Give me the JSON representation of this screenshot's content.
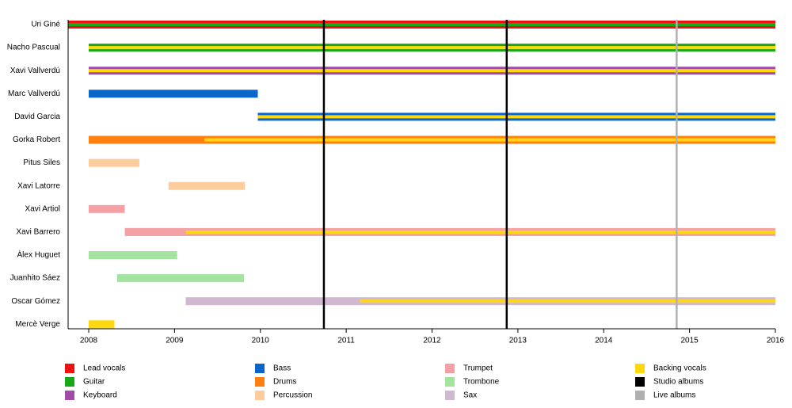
{
  "chart_data": {
    "type": "timeline",
    "categories": [
      "Uri Giné",
      "Nacho Pascual",
      "Xavi Vallverdú",
      "Marc Vallverdú",
      "David Garcia",
      "Gorka Robert",
      "Pitus Siles",
      "Xavi Latorre",
      "Xavi Artiol",
      "Xavi Barrero",
      "Àlex Huguet",
      "Juanhito Sáez",
      "Oscar Gómez",
      "Mercè Verge"
    ],
    "xlim": [
      2007.76,
      2016
    ],
    "xticks": [
      2008,
      2009,
      2010,
      2011,
      2012,
      2013,
      2014,
      2015,
      2016
    ],
    "series": [
      {
        "name": "Lead vocals",
        "color": "#ee1111",
        "start": [
          2007.76,
          null,
          null,
          null,
          null,
          null,
          null,
          null,
          null,
          null,
          null,
          null,
          null,
          null
        ],
        "end": [
          2016,
          null,
          null,
          null,
          null,
          null,
          null,
          null,
          null,
          null,
          null,
          null,
          null,
          null
        ]
      },
      {
        "name": "Guitar",
        "color": "#19a819",
        "start": [
          2007.76,
          2008,
          null,
          null,
          null,
          null,
          null,
          null,
          null,
          null,
          null,
          null,
          null,
          null
        ],
        "end": [
          2016,
          2016,
          null,
          null,
          null,
          null,
          null,
          null,
          null,
          null,
          null,
          null,
          null,
          null
        ]
      },
      {
        "name": "Keyboard",
        "color": "#a04ca8",
        "start": [
          null,
          null,
          2008,
          null,
          null,
          null,
          null,
          null,
          null,
          null,
          null,
          null,
          null,
          null
        ],
        "end": [
          null,
          null,
          2016,
          null,
          null,
          null,
          null,
          null,
          null,
          null,
          null,
          null,
          null,
          null
        ]
      },
      {
        "name": "Bass",
        "color": "#0a66c8",
        "start": [
          null,
          null,
          null,
          2008,
          2009.97,
          null,
          null,
          null,
          null,
          null,
          null,
          null,
          null,
          null
        ],
        "end": [
          null,
          null,
          null,
          2009.97,
          2016,
          null,
          null,
          null,
          null,
          null,
          null,
          null,
          null,
          null
        ]
      },
      {
        "name": "Drums",
        "color": "#ff8010",
        "start": [
          null,
          null,
          null,
          null,
          null,
          2008,
          null,
          null,
          null,
          null,
          null,
          null,
          null,
          null
        ],
        "end": [
          null,
          null,
          null,
          null,
          null,
          2016,
          null,
          null,
          null,
          null,
          null,
          null,
          null,
          null
        ]
      },
      {
        "name": "Percussion",
        "color": "#fccc9c",
        "start": [
          null,
          null,
          null,
          null,
          null,
          null,
          2008,
          2008.93,
          null,
          null,
          null,
          null,
          null,
          null
        ],
        "end": [
          null,
          null,
          null,
          null,
          null,
          null,
          2008.59,
          2009.82,
          null,
          null,
          null,
          null,
          null,
          null
        ]
      },
      {
        "name": "Trumpet",
        "color": "#f4a0a4",
        "start": [
          null,
          null,
          null,
          null,
          null,
          null,
          null,
          null,
          2008,
          2008.42,
          null,
          null,
          null,
          null
        ],
        "end": [
          null,
          null,
          null,
          null,
          null,
          null,
          null,
          null,
          2008.42,
          2016,
          null,
          null,
          null,
          null
        ]
      },
      {
        "name": "Trombone",
        "color": "#a4e4a0",
        "start": [
          null,
          null,
          null,
          null,
          null,
          null,
          null,
          null,
          null,
          null,
          2008,
          2008.33,
          null,
          null
        ],
        "end": [
          null,
          null,
          null,
          null,
          null,
          null,
          null,
          null,
          null,
          null,
          2009.03,
          2009.81,
          null,
          null
        ]
      },
      {
        "name": "Sax",
        "color": "#d0b8d0",
        "start": [
          null,
          null,
          null,
          null,
          null,
          null,
          null,
          null,
          null,
          null,
          null,
          null,
          2009.13,
          null
        ],
        "end": [
          null,
          null,
          null,
          null,
          null,
          null,
          null,
          null,
          null,
          null,
          null,
          null,
          2016,
          null
        ]
      },
      {
        "name": "Backing vocals",
        "color": "#ffd810",
        "start": [
          null,
          2008,
          2008,
          null,
          2009.97,
          2009.35,
          null,
          null,
          null,
          2009.13,
          null,
          null,
          2011.16,
          2008
        ],
        "end": [
          null,
          2016,
          2016,
          null,
          2016,
          2016,
          null,
          null,
          null,
          2016,
          null,
          null,
          2016,
          2008.3
        ]
      }
    ],
    "events": [
      {
        "name": "Studio albums",
        "color": "#000000",
        "x": [
          2010.74,
          2012.87
        ]
      },
      {
        "name": "Live albums",
        "color": "#b0b0b0",
        "x": [
          2014.85
        ]
      }
    ]
  }
}
